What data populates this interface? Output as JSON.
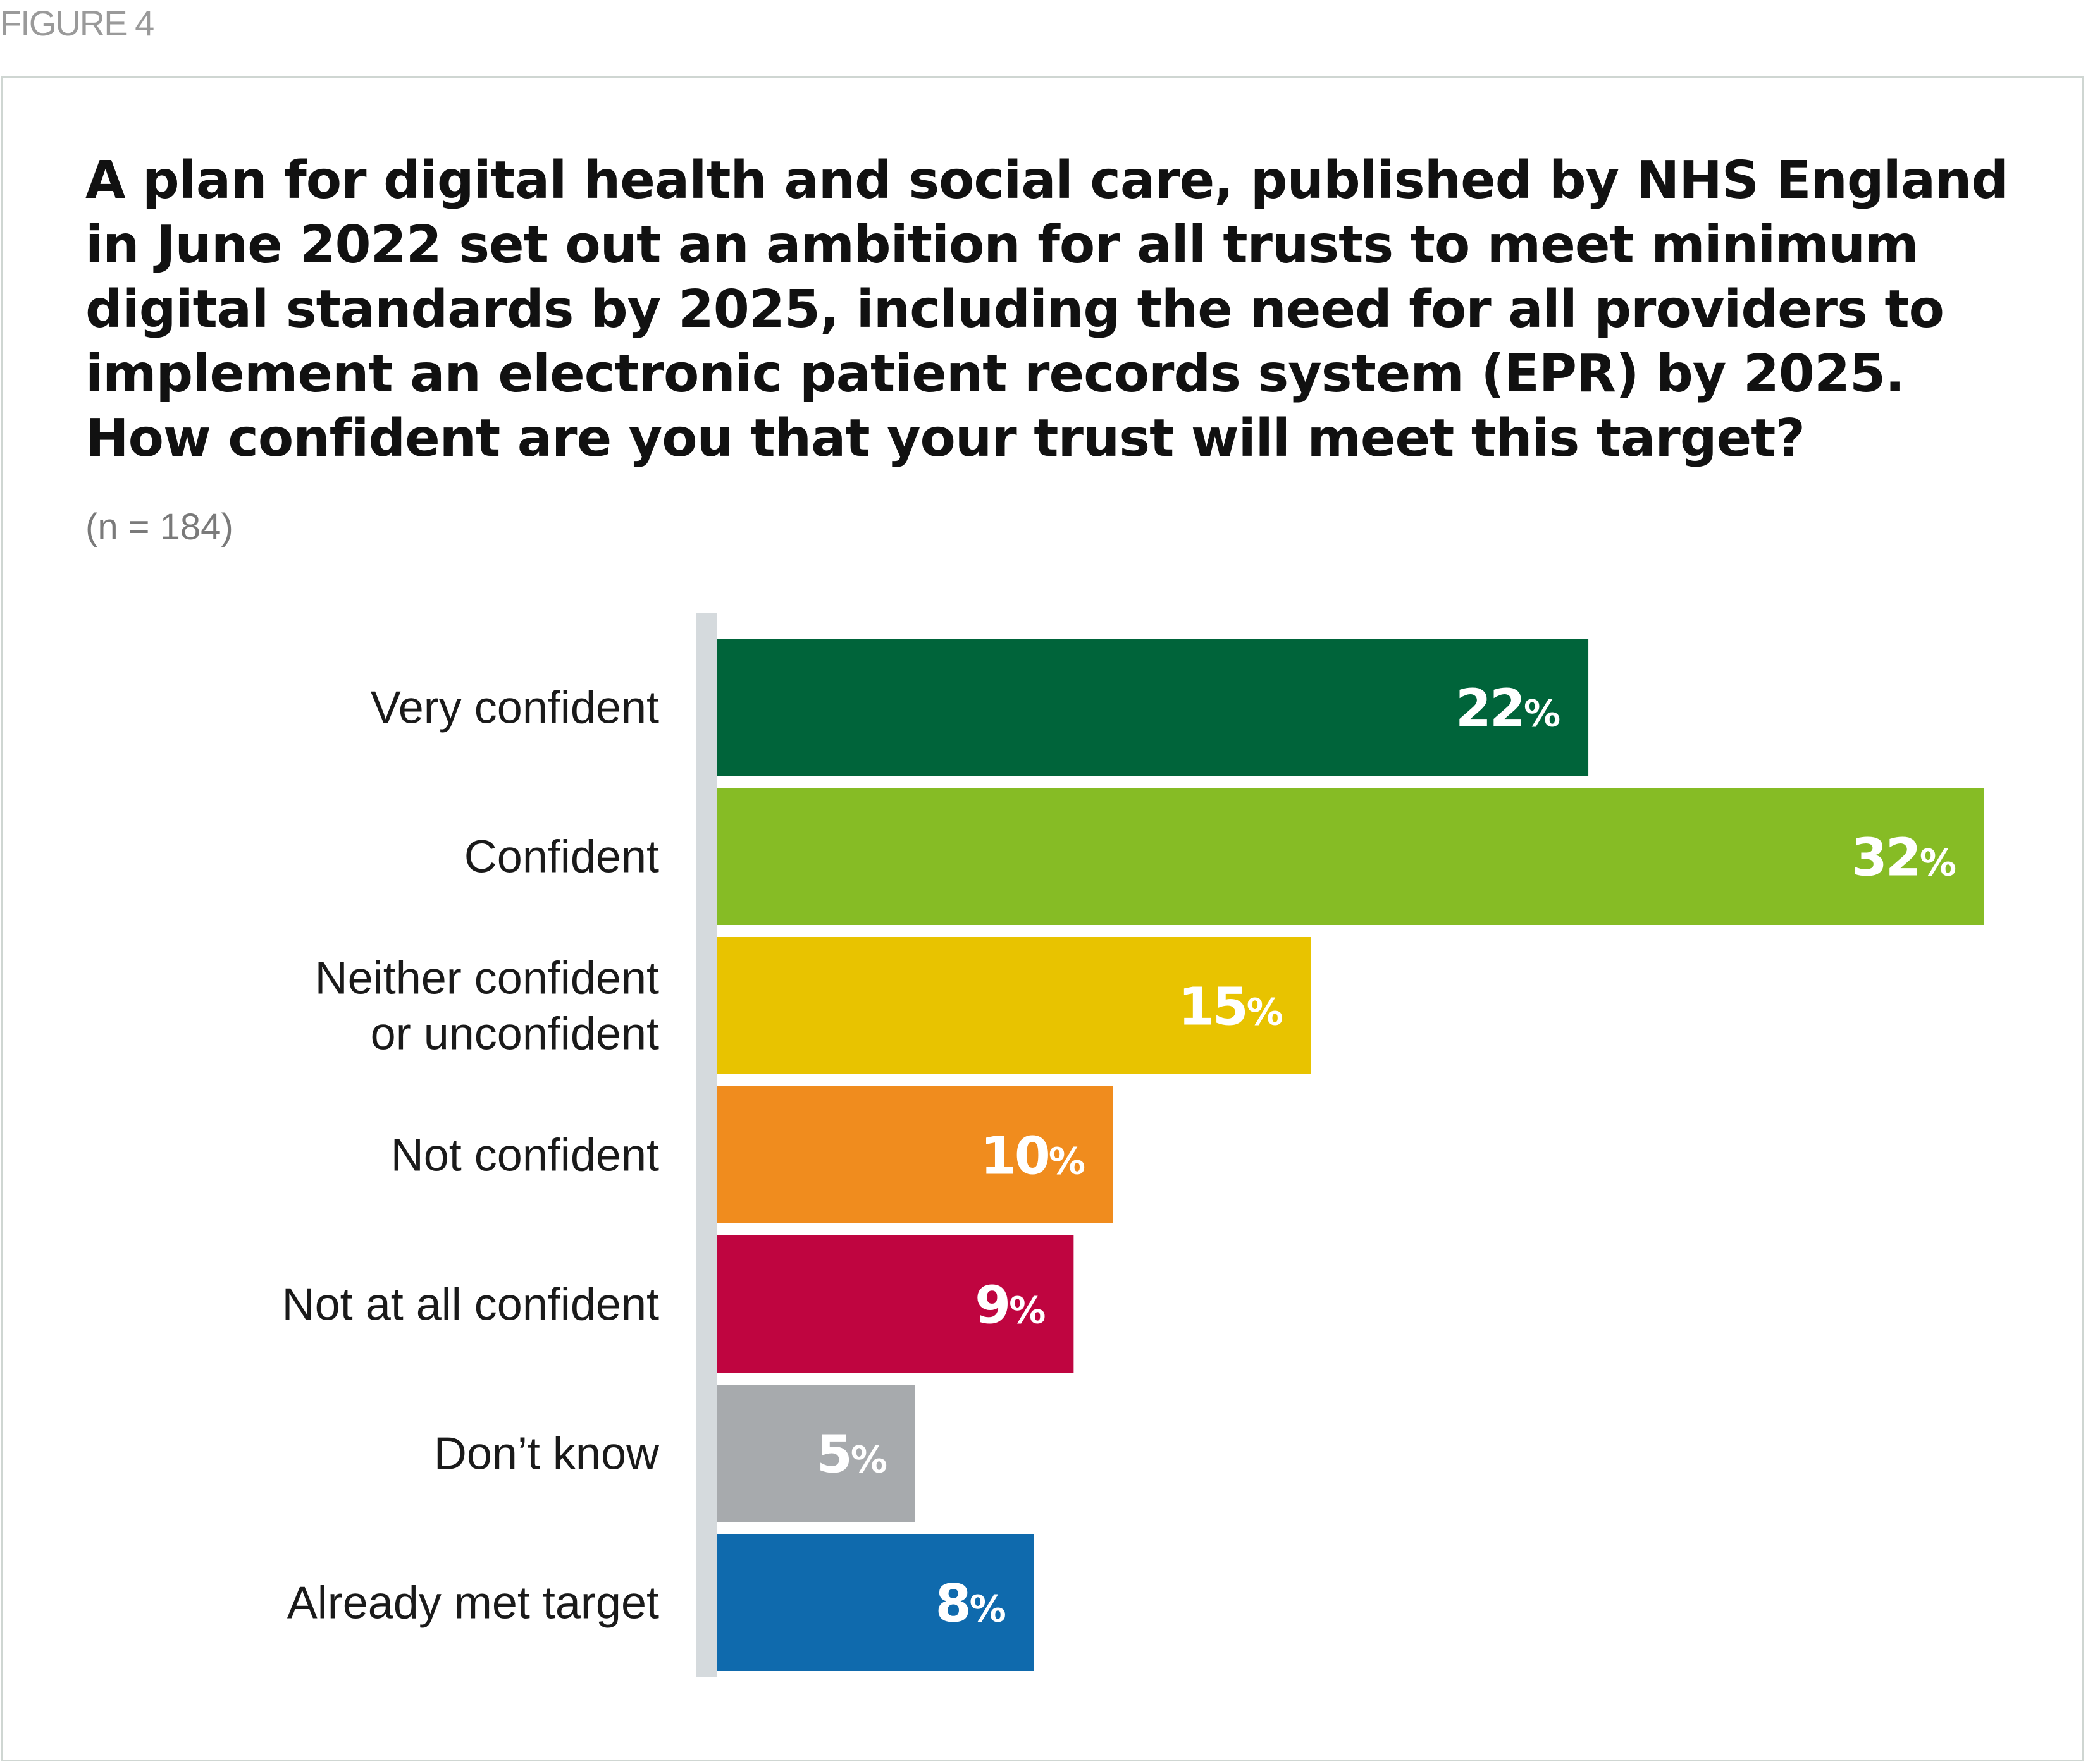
{
  "figure_label": "FIGURE 4",
  "chart_data": {
    "type": "bar",
    "orientation": "horizontal",
    "title": "A plan for digital health and social care, published by NHS England in June 2022 set out an ambition for all trusts to meet minimum digital standards by 2025, including the need for all providers to implement an electronic patient records system (EPR) by 2025. How confident are you that your trust will meet this target?",
    "subtitle": "(n = 184)",
    "categories": [
      [
        "Very confident"
      ],
      [
        "Confident"
      ],
      [
        "Neither confident",
        "or unconfident"
      ],
      [
        "Not confident"
      ],
      [
        "Not at all confident"
      ],
      [
        "Don’t know"
      ],
      [
        "Already met target"
      ]
    ],
    "values": [
      22,
      32,
      15,
      10,
      9,
      5,
      8
    ],
    "unit": "%",
    "colors": [
      "#00643a",
      "#86bc25",
      "#e8c300",
      "#f08c1e",
      "#bf0540",
      "#a7aaad",
      "#0f6aad"
    ],
    "axis_color": "#d5dadd",
    "xlim": [
      0,
      32
    ],
    "grid": false,
    "legend": "none"
  }
}
